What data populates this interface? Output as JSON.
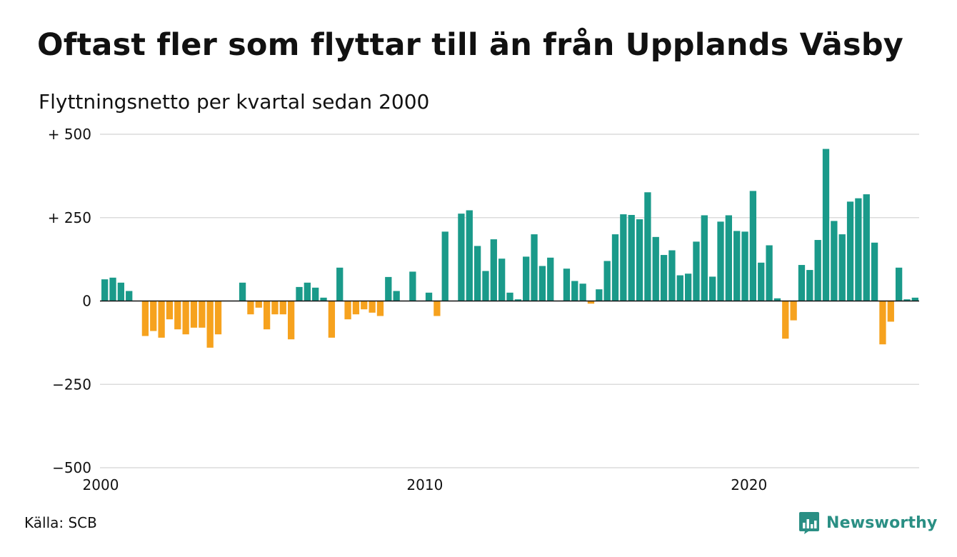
{
  "title": "Oftast fler som flyttar till än från Upplands Väsby",
  "subtitle": "Flyttningsnetto per kvartal sedan 2000",
  "source": "Källa: SCB",
  "logo": {
    "text": "Newsworthy",
    "icon": "bar-chart-badge-icon",
    "color": "#2a8f84"
  },
  "colors": {
    "positive": "#1a9a8a",
    "negative": "#f6a21e",
    "grid": "#dcdcdc",
    "zero_line": "#111111"
  },
  "chart_data": {
    "type": "bar",
    "title": "Oftast fler som flyttar till än från Upplands Väsby",
    "subtitle": "Flyttningsnetto per kvartal sedan 2000",
    "xlabel": "",
    "ylabel": "",
    "ylim": [
      -500,
      500
    ],
    "y_ticks": [
      {
        "value": 500,
        "label": "+ 500"
      },
      {
        "value": 250,
        "label": "+ 250"
      },
      {
        "value": 0,
        "label": "0"
      },
      {
        "value": -250,
        "label": "−250"
      },
      {
        "value": -500,
        "label": "−500"
      }
    ],
    "x_ticks": [
      {
        "year": 2000,
        "label": "2000"
      },
      {
        "year": 2010,
        "label": "2010"
      },
      {
        "year": 2020,
        "label": "2020"
      }
    ],
    "grid": true,
    "first_quarter": "2000 K1",
    "values": [
      65,
      70,
      55,
      30,
      0,
      -105,
      -90,
      -110,
      -55,
      -85,
      -100,
      -80,
      -80,
      -140,
      -100,
      0,
      0,
      55,
      -40,
      -20,
      -85,
      -40,
      -40,
      -115,
      42,
      55,
      40,
      10,
      -110,
      100,
      -55,
      -40,
      -25,
      -35,
      -45,
      72,
      30,
      0,
      88,
      0,
      25,
      -45,
      208,
      0,
      262,
      272,
      165,
      90,
      185,
      127,
      25,
      5,
      133,
      200,
      105,
      130,
      0,
      97,
      60,
      52,
      -8,
      35,
      120,
      200,
      260,
      258,
      245,
      326,
      192,
      138,
      152,
      77,
      82,
      178,
      257,
      73,
      238,
      257,
      210,
      208,
      330,
      115,
      167,
      8,
      -113,
      -58,
      108,
      93,
      183,
      456,
      240,
      200,
      298,
      308,
      320,
      175,
      -130,
      -62,
      100,
      5,
      10
    ]
  }
}
